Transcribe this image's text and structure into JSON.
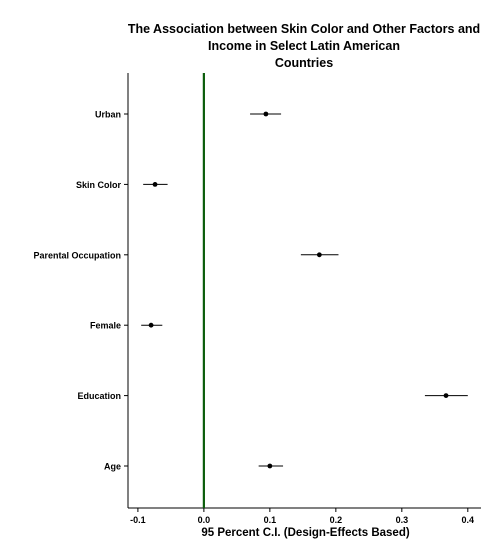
{
  "chart_data": {
    "type": "scatter",
    "subtype": "coefficient-plot",
    "title": "The Association between Skin Color and Other Factors and Income in Select Latin American Countries",
    "title_lines": [
      "The Association between Skin Color and Other Factors and",
      "Income in Select Latin American",
      "Countries"
    ],
    "xlabel": "95 Percent C.I. (Design-Effects Based)",
    "ylabel": "",
    "xlim": [
      -0.115,
      0.42
    ],
    "xticks": [
      -0.1,
      0.0,
      0.1,
      0.2,
      0.3,
      0.4
    ],
    "xtick_labels": [
      "-0.1",
      "0.0",
      "0.1",
      "0.2",
      "0.3",
      "0.4"
    ],
    "reference_line": {
      "x": 0,
      "color": "#0b5d0b"
    },
    "grid": false,
    "legend": "none",
    "categories": [
      "Urban",
      "Skin Color",
      "Parental Occupation",
      "Female",
      "Education",
      "Age"
    ],
    "estimates": [
      0.094,
      -0.074,
      0.175,
      -0.08,
      0.367,
      0.1
    ],
    "ci_low": [
      0.07,
      -0.092,
      0.147,
      -0.095,
      0.335,
      0.083
    ],
    "ci_high": [
      0.117,
      -0.055,
      0.204,
      -0.063,
      0.4,
      0.12
    ]
  }
}
